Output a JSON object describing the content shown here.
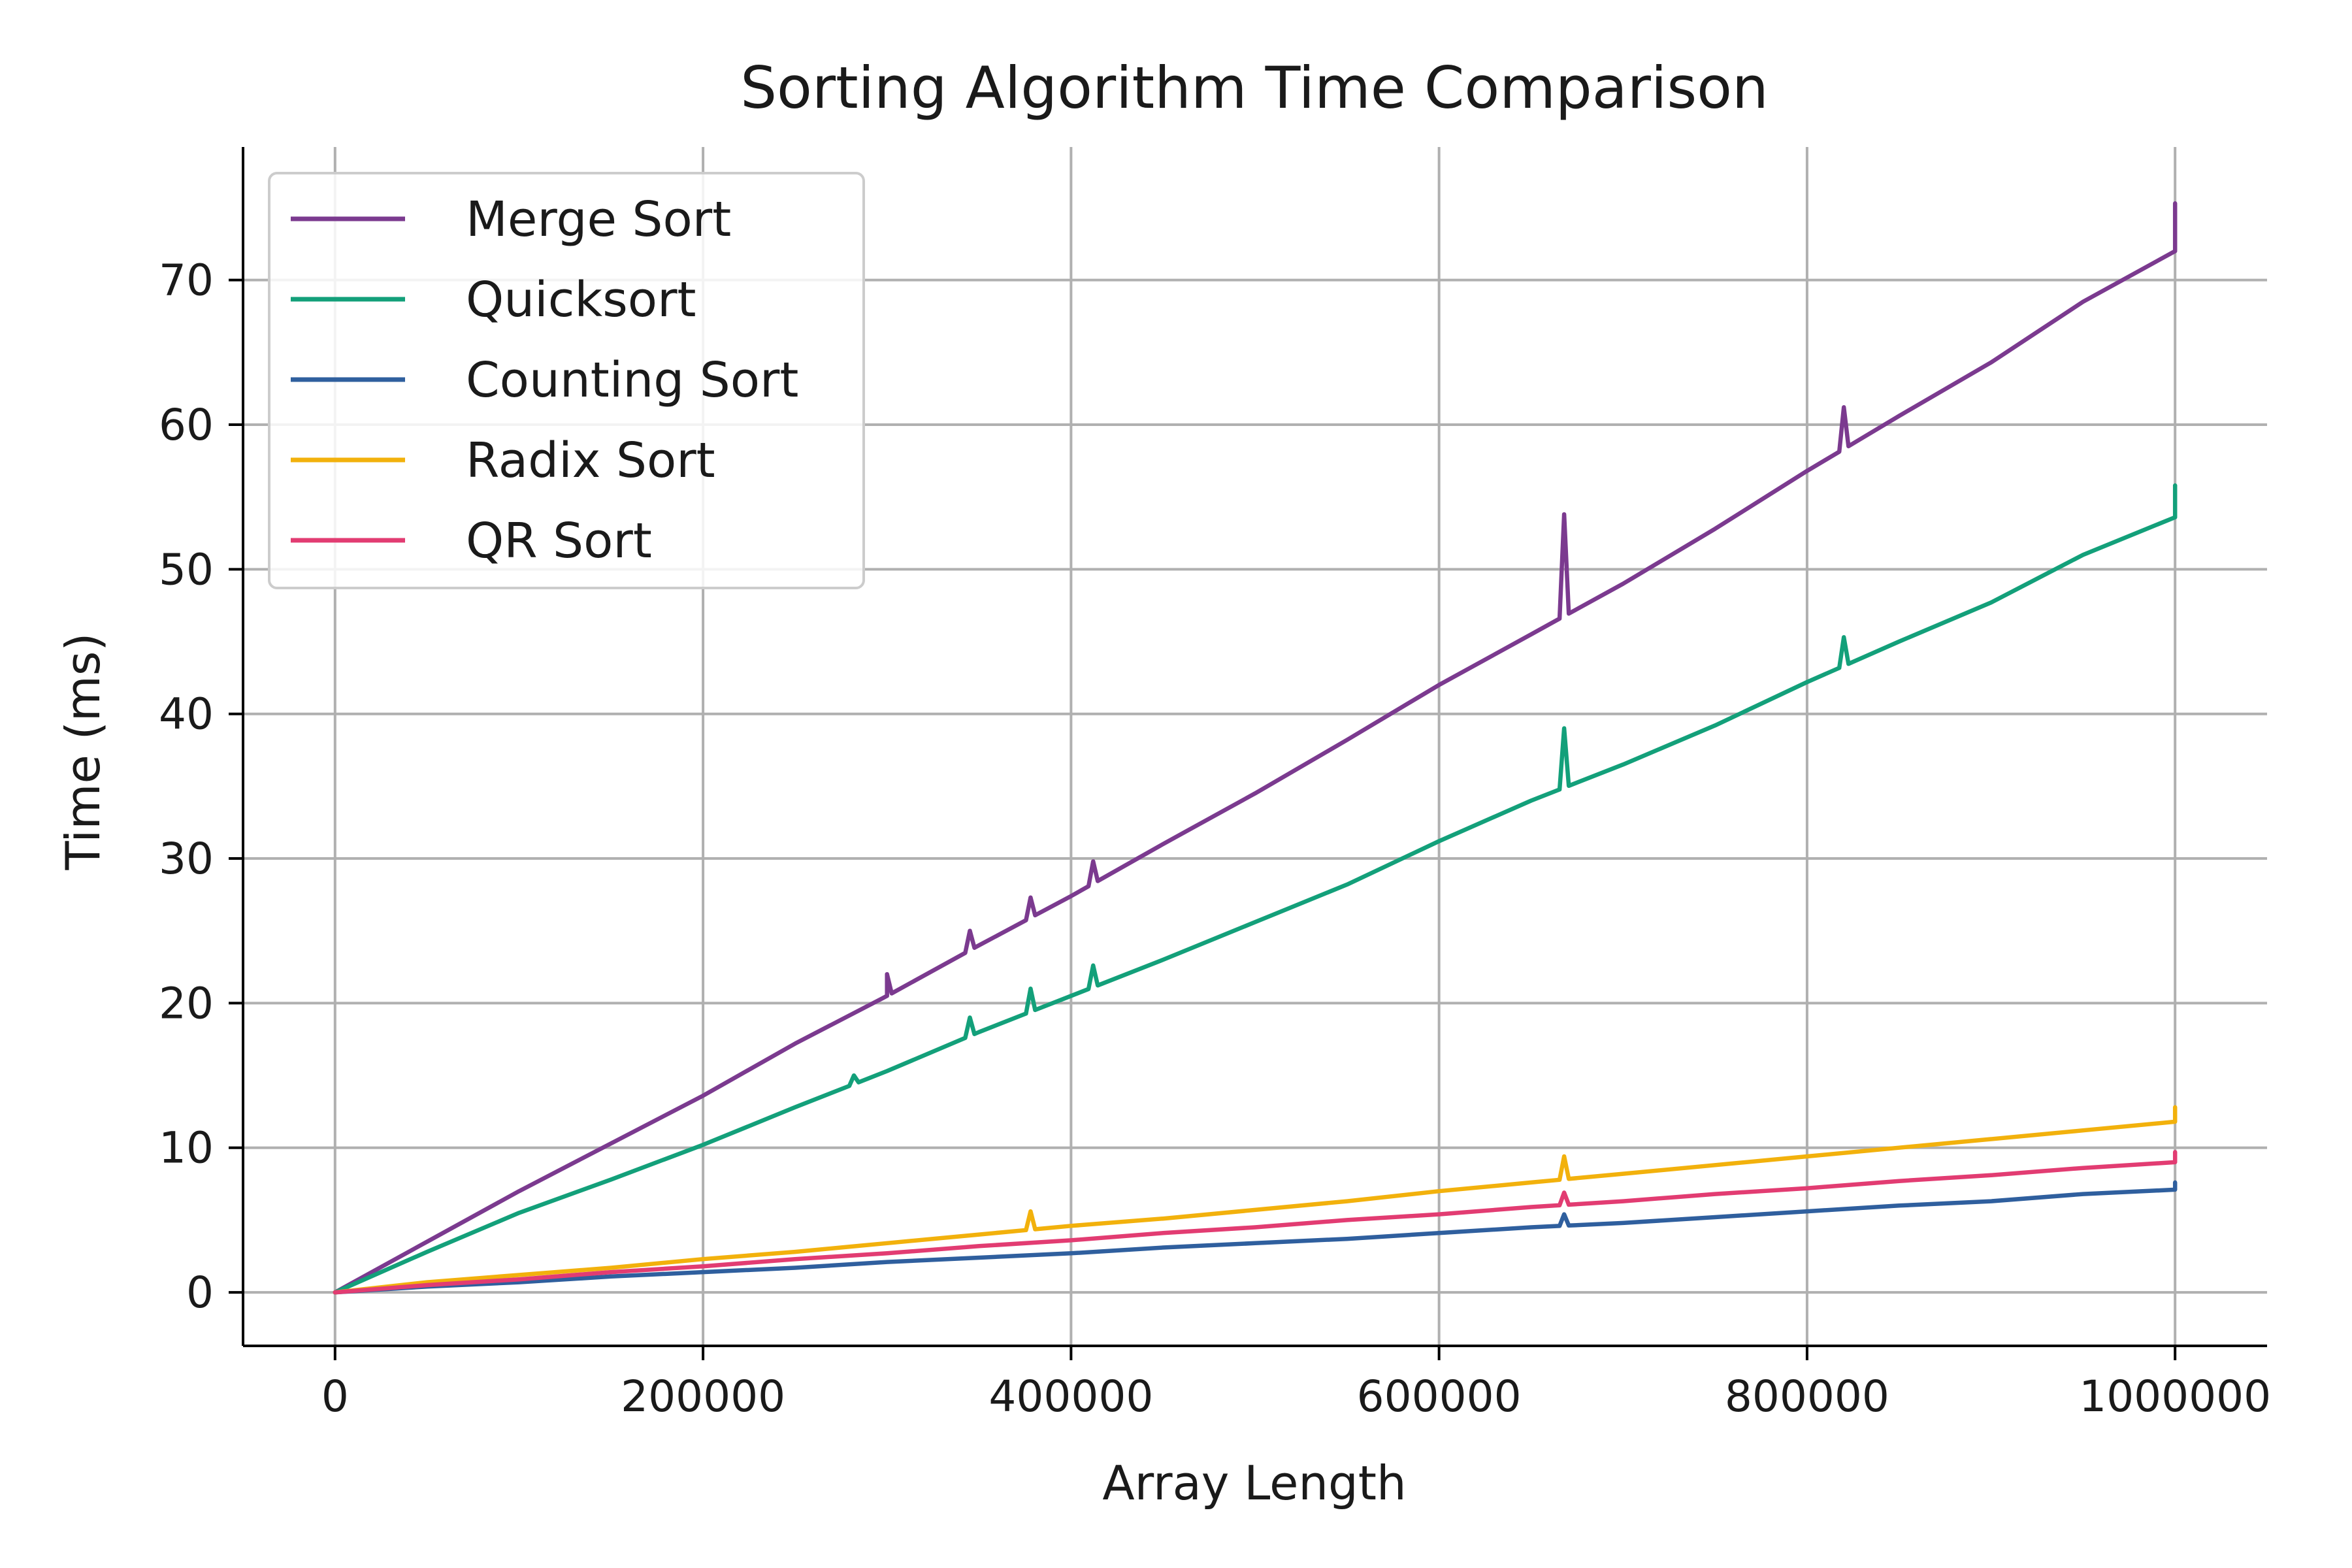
{
  "chart_data": {
    "type": "line",
    "title": "Sorting Algorithm Time Comparison",
    "xlabel": "Array Length",
    "ylabel": "Time (ms)",
    "xlim": [
      -50000,
      1050000
    ],
    "ylim": [
      -3.7,
      79.2
    ],
    "x_ticks": [
      0,
      200000,
      400000,
      600000,
      800000,
      1000000
    ],
    "y_ticks": [
      0,
      10,
      20,
      30,
      40,
      50,
      60,
      70
    ],
    "grid": true,
    "legend_position": "top-left",
    "x": [
      0,
      50000,
      100000,
      150000,
      200000,
      250000,
      300000,
      350000,
      400000,
      450000,
      500000,
      550000,
      600000,
      650000,
      700000,
      750000,
      800000,
      850000,
      900000,
      950000,
      1000000
    ],
    "series": [
      {
        "name": "Merge Sort",
        "color": "#7b3a8f",
        "values": [
          0,
          3.5,
          7.0,
          10.3,
          13.6,
          17.2,
          20.5,
          24.0,
          27.4,
          31.0,
          34.5,
          38.2,
          42.0,
          45.5,
          49.0,
          52.8,
          56.8,
          60.6,
          64.3,
          68.5,
          72.0
        ],
        "spikes": [
          [
            300000,
            22.0
          ],
          [
            345000,
            25.0
          ],
          [
            378000,
            27.3
          ],
          [
            412000,
            29.8
          ],
          [
            668000,
            53.8
          ],
          [
            820000,
            61.2
          ],
          [
            1000000,
            75.3
          ]
        ]
      },
      {
        "name": "Quicksort",
        "color": "#13a07a",
        "values": [
          0,
          2.8,
          5.5,
          7.8,
          10.2,
          12.8,
          15.3,
          18.0,
          20.5,
          23.0,
          25.6,
          28.2,
          31.2,
          34.0,
          36.5,
          39.2,
          42.2,
          45.0,
          47.7,
          51.0,
          53.6
        ],
        "spikes": [
          [
            282000,
            15.0
          ],
          [
            345000,
            19.0
          ],
          [
            378000,
            21.0
          ],
          [
            412000,
            22.6
          ],
          [
            668000,
            39.0
          ],
          [
            820000,
            45.3
          ],
          [
            1000000,
            55.8
          ]
        ]
      },
      {
        "name": "Counting Sort",
        "color": "#2f5f9e",
        "values": [
          0,
          0.4,
          0.7,
          1.1,
          1.4,
          1.7,
          2.1,
          2.4,
          2.7,
          3.1,
          3.4,
          3.7,
          4.1,
          4.5,
          4.8,
          5.2,
          5.6,
          6.0,
          6.3,
          6.8,
          7.1
        ],
        "spikes": [
          [
            668000,
            5.4
          ],
          [
            1000000,
            7.6
          ]
        ]
      },
      {
        "name": "Radix Sort",
        "color": "#f2b10c",
        "values": [
          0,
          0.7,
          1.2,
          1.7,
          2.3,
          2.8,
          3.4,
          4.0,
          4.6,
          5.1,
          5.7,
          6.3,
          7.0,
          7.6,
          8.2,
          8.8,
          9.4,
          10.0,
          10.6,
          11.2,
          11.8
        ],
        "spikes": [
          [
            378000,
            5.6
          ],
          [
            668000,
            9.4
          ],
          [
            1000000,
            12.8
          ]
        ]
      },
      {
        "name": "QR Sort",
        "color": "#e23c72",
        "values": [
          0,
          0.5,
          0.9,
          1.4,
          1.8,
          2.3,
          2.7,
          3.2,
          3.6,
          4.1,
          4.5,
          5.0,
          5.4,
          5.9,
          6.3,
          6.8,
          7.2,
          7.7,
          8.1,
          8.6,
          9.0
        ],
        "spikes": [
          [
            668000,
            6.9
          ],
          [
            1000000,
            9.7
          ]
        ]
      }
    ]
  }
}
